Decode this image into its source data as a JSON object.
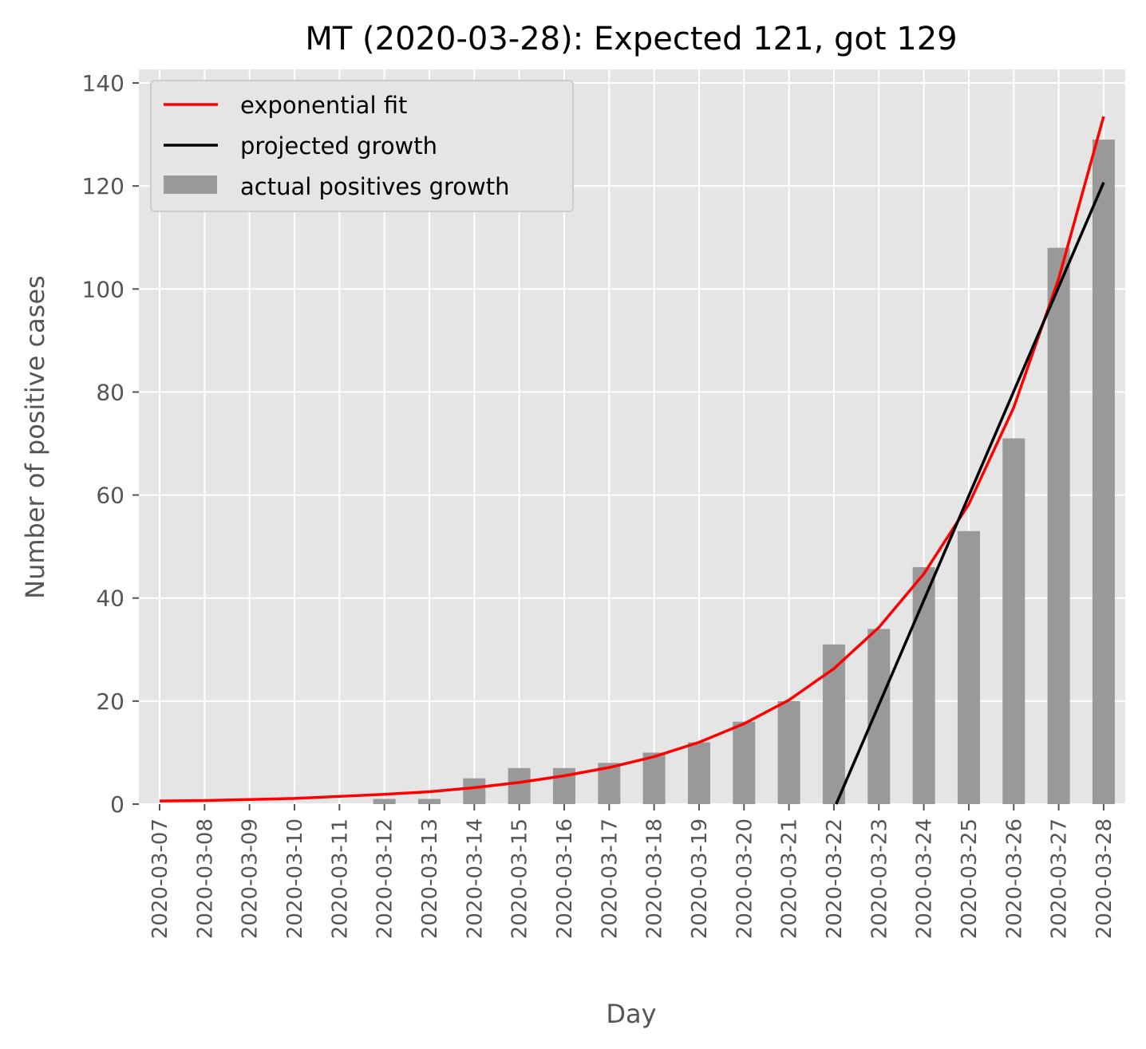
{
  "chart_data": {
    "type": "bar",
    "title": "MT (2020-03-28): Expected 121, got 129",
    "xlabel": "Day",
    "ylabel": "Number of positive cases",
    "ylim": [
      0,
      140
    ],
    "yticks": [
      0,
      20,
      40,
      60,
      80,
      100,
      120,
      140
    ],
    "grid": true,
    "legend_position": "top-left",
    "categories": [
      "2020-03-07",
      "2020-03-08",
      "2020-03-09",
      "2020-03-10",
      "2020-03-11",
      "2020-03-12",
      "2020-03-13",
      "2020-03-14",
      "2020-03-15",
      "2020-03-16",
      "2020-03-17",
      "2020-03-18",
      "2020-03-19",
      "2020-03-20",
      "2020-03-21",
      "2020-03-22",
      "2020-03-23",
      "2020-03-24",
      "2020-03-25",
      "2020-03-26",
      "2020-03-27",
      "2020-03-28"
    ],
    "series": [
      {
        "name": "actual positives growth",
        "kind": "bar",
        "color": "#999999",
        "values": [
          0,
          0,
          0,
          0,
          0,
          1,
          1,
          5,
          7,
          7,
          8,
          10,
          12,
          16,
          20,
          31,
          34,
          46,
          53,
          71,
          108,
          129
        ]
      },
      {
        "name": "exponential fit",
        "kind": "line",
        "color": "#ff0000",
        "values": [
          0.6,
          0.7,
          0.9,
          1.1,
          1.5,
          1.9,
          2.4,
          3.2,
          4.2,
          5.5,
          7.1,
          9.2,
          12,
          15.6,
          20.2,
          26.3,
          34.3,
          44.7,
          58.2,
          77,
          102,
          133.5
        ]
      },
      {
        "name": "projected growth",
        "kind": "line",
        "color": "#000000",
        "x": [
          "2020-03-22",
          "2020-03-28"
        ],
        "x_index": [
          15.05,
          21
        ],
        "values": [
          0,
          120.7
        ]
      }
    ]
  }
}
